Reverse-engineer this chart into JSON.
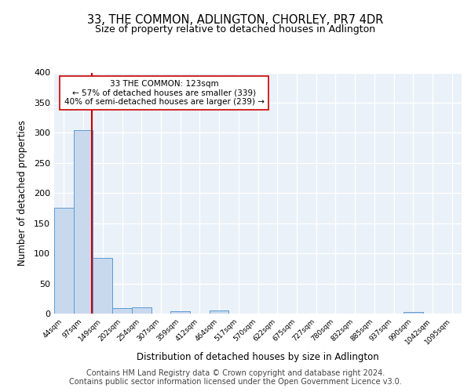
{
  "title": "33, THE COMMON, ADLINGTON, CHORLEY, PR7 4DR",
  "subtitle": "Size of property relative to detached houses in Adlington",
  "xlabel": "Distribution of detached houses by size in Adlington",
  "ylabel": "Number of detached properties",
  "bar_labels": [
    "44sqm",
    "97sqm",
    "149sqm",
    "202sqm",
    "254sqm",
    "307sqm",
    "359sqm",
    "412sqm",
    "464sqm",
    "517sqm",
    "570sqm",
    "622sqm",
    "675sqm",
    "727sqm",
    "780sqm",
    "832sqm",
    "885sqm",
    "937sqm",
    "990sqm",
    "1042sqm",
    "1095sqm"
  ],
  "bar_values": [
    176,
    305,
    92,
    9,
    11,
    0,
    4,
    0,
    5,
    0,
    0,
    0,
    0,
    0,
    0,
    0,
    0,
    0,
    3,
    0,
    0
  ],
  "bar_color": "#c9d9ed",
  "bar_edge_color": "#5b9bd5",
  "marker_color": "#cc0000",
  "annotation_text": "33 THE COMMON: 123sqm\n← 57% of detached houses are smaller (339)\n40% of semi-detached houses are larger (239) →",
  "annotation_box_color": "#ffffff",
  "annotation_box_edge_color": "#cc0000",
  "background_color": "#eaf1f8",
  "grid_color": "#ffffff",
  "ylim": [
    0,
    400
  ],
  "yticks": [
    0,
    50,
    100,
    150,
    200,
    250,
    300,
    350,
    400
  ],
  "footer": "Contains HM Land Registry data © Crown copyright and database right 2024.\nContains public sector information licensed under the Open Government Licence v3.0.",
  "title_fontsize": 10.5,
  "subtitle_fontsize": 9,
  "footer_fontsize": 7
}
